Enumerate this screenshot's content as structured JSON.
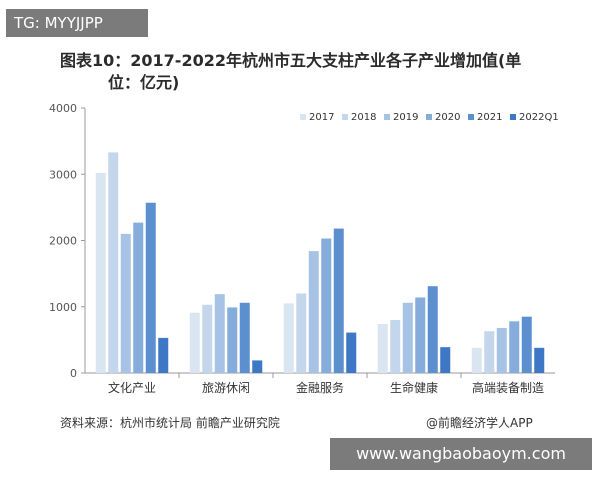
{
  "header": {
    "tag": "TG: MYYJJPP"
  },
  "chart_data": {
    "type": "bar",
    "title": "图表10：2017-2022年杭州市五大支柱产业各子产业增加值(单",
    "subtitle": "位：亿元)",
    "categories": [
      "文化产业",
      "旅游休闲",
      "金融服务",
      "生命健康",
      "高端装备制造"
    ],
    "series": [
      {
        "name": "2017",
        "values": [
          3020,
          910,
          1050,
          740,
          380
        ],
        "color": "#dae5f2"
      },
      {
        "name": "2018",
        "values": [
          3330,
          1030,
          1200,
          800,
          630
        ],
        "color": "#c4d6ec"
      },
      {
        "name": "2019",
        "values": [
          2100,
          1190,
          1840,
          1060,
          680
        ],
        "color": "#a6c2e4"
      },
      {
        "name": "2020",
        "values": [
          2270,
          990,
          2030,
          1140,
          780
        ],
        "color": "#86acdb"
      },
      {
        "name": "2021",
        "values": [
          2570,
          1060,
          2180,
          1310,
          850
        ],
        "color": "#5c8fd0"
      },
      {
        "name": "2022Q1",
        "values": [
          530,
          190,
          610,
          390,
          380
        ],
        "color": "#3e77c5"
      }
    ],
    "legend_labels": [
      "2017",
      "2018",
      "2019",
      "2020",
      "2021",
      "2022Q1"
    ],
    "ylim": [
      0,
      4000
    ],
    "yticks": [
      0,
      1000,
      2000,
      3000,
      4000
    ],
    "ytick_labels": [
      "0",
      "1000",
      "2000",
      "3000",
      "4000"
    ],
    "grid": false,
    "legend_position": "top-right",
    "xlabel": "",
    "ylabel": ""
  },
  "footer": {
    "source": "资料来源：杭州市统计局 前瞻产业研究院",
    "credit": "@前瞻经济学人APP"
  },
  "banner": {
    "site": "www.wangbaobaoym.com"
  }
}
